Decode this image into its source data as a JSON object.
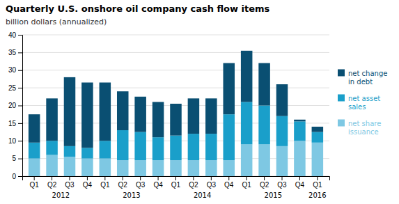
{
  "chart_data": {
    "type": "bar",
    "stacked": true,
    "title": "Quarterly U.S. onshore oil company cash flow items",
    "subtitle": "billion dollars (annualized)",
    "categories": [
      "Q1",
      "Q2",
      "Q3",
      "Q4",
      "Q1",
      "Q2",
      "Q3",
      "Q4",
      "Q1",
      "Q2",
      "Q3",
      "Q4",
      "Q1",
      "Q2",
      "Q3",
      "Q4",
      "Q1"
    ],
    "annotations": [
      {
        "text": "2012",
        "x": 1.5
      },
      {
        "text": "2013",
        "x": 5.5
      },
      {
        "text": "2014",
        "x": 9.5
      },
      {
        "text": "2015",
        "x": 13.5
      },
      {
        "text": "2016",
        "x": 16
      }
    ],
    "series": [
      {
        "name": "net share\nissuance",
        "color": "#7ec8e3",
        "values": [
          5.0,
          6.0,
          5.5,
          5.0,
          5.0,
          4.5,
          4.5,
          4.5,
          4.5,
          4.5,
          4.5,
          4.5,
          9.0,
          9.0,
          8.5,
          10.0,
          9.5
        ]
      },
      {
        "name": "net asset\nsales",
        "color": "#1a9fca",
        "values": [
          4.5,
          4.0,
          3.0,
          3.0,
          5.0,
          8.5,
          8.0,
          6.5,
          7.0,
          7.5,
          7.5,
          13.0,
          12.0,
          11.0,
          8.5,
          5.5,
          3.0
        ]
      },
      {
        "name": "net change\nin debt",
        "color": "#0a4f72",
        "values": [
          8.0,
          12.0,
          19.5,
          18.5,
          16.5,
          11.0,
          10.0,
          10.0,
          9.0,
          10.0,
          10.0,
          14.5,
          14.5,
          12.0,
          9.0,
          0.5,
          1.5
        ]
      }
    ],
    "ylim": [
      0,
      40
    ],
    "yticks": [
      0,
      5,
      10,
      15,
      20,
      25,
      30,
      35,
      40
    ],
    "grid": true,
    "legend": "right"
  }
}
